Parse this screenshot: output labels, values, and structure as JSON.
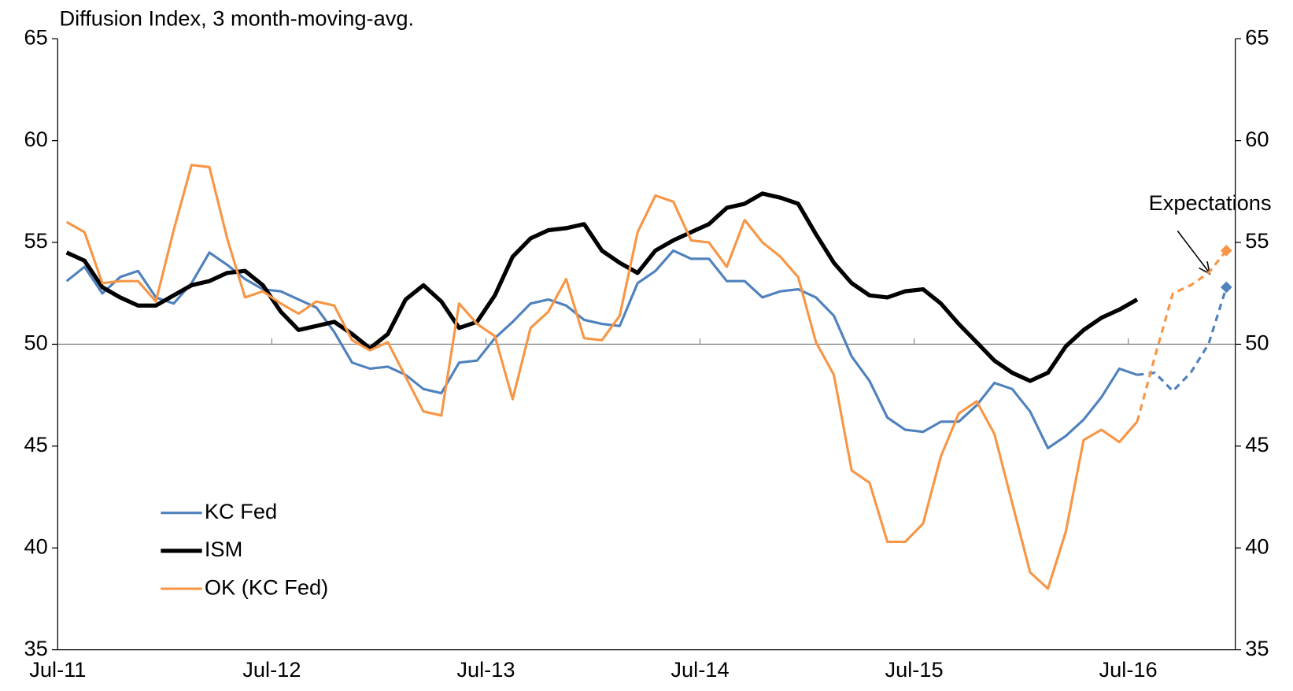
{
  "chart_data": {
    "type": "line",
    "y_label": "Diffusion Index, 3 month-moving-avg.",
    "annotation": "Expectations",
    "categories": [
      "Jul-11",
      null,
      null,
      null,
      null,
      null,
      null,
      null,
      null,
      null,
      null,
      null,
      "Jul-12",
      null,
      null,
      null,
      null,
      null,
      null,
      null,
      null,
      null,
      null,
      null,
      "Jul-13",
      null,
      null,
      null,
      null,
      null,
      null,
      null,
      null,
      null,
      null,
      null,
      "Jul-14",
      null,
      null,
      null,
      null,
      null,
      null,
      null,
      null,
      null,
      null,
      null,
      "Jul-15",
      null,
      null,
      null,
      null,
      null,
      null,
      null,
      null,
      null,
      null,
      null,
      "Jul-16",
      null,
      null,
      null,
      null,
      null
    ],
    "series": [
      {
        "name": "KC Fed",
        "color": "#4f81bd",
        "width": 3,
        "end_marker": "diamond",
        "values": [
          53.1,
          53.8,
          52.5,
          53.3,
          53.6,
          52.3,
          52.0,
          53.0,
          54.5,
          53.9,
          53.2,
          52.7,
          52.6,
          52.2,
          51.8,
          50.6,
          49.1,
          48.8,
          48.9,
          48.5,
          47.8,
          47.6,
          49.1,
          49.2,
          50.3,
          51.1,
          52.0,
          52.2,
          51.9,
          51.2,
          51.0,
          50.9,
          53.0,
          53.6,
          54.6,
          54.2,
          54.2,
          53.1,
          53.1,
          52.3,
          52.6,
          52.7,
          52.3,
          51.4,
          49.4,
          48.2,
          46.4,
          45.8,
          45.7,
          46.2,
          46.2,
          47.0,
          48.1,
          47.8,
          46.7,
          44.9,
          45.5,
          46.3,
          47.4,
          48.8,
          48.5,
          48.6,
          47.7,
          48.6,
          50.0,
          52.8
        ]
      },
      {
        "name": "ISM",
        "color": "#000000",
        "width": 5,
        "values": [
          54.5,
          54.1,
          52.8,
          52.3,
          51.9,
          51.9,
          52.4,
          52.9,
          53.1,
          53.5,
          53.6,
          52.9,
          51.6,
          50.7,
          50.9,
          51.1,
          50.5,
          49.8,
          50.5,
          52.2,
          52.9,
          52.1,
          50.8,
          51.1,
          52.4,
          54.3,
          55.2,
          55.6,
          55.7,
          55.9,
          54.6,
          54.0,
          53.5,
          54.6,
          55.1,
          55.5,
          55.9,
          56.7,
          56.9,
          57.4,
          57.2,
          56.9,
          55.4,
          54.0,
          53.0,
          52.4,
          52.3,
          52.6,
          52.7,
          52.0,
          51.0,
          50.1,
          49.2,
          48.6,
          48.2,
          48.6,
          49.9,
          50.7,
          51.3,
          51.7,
          52.2,
          null,
          null,
          null,
          null,
          null
        ]
      },
      {
        "name": "OK (KC Fed)",
        "color": "#f79646",
        "width": 3,
        "end_marker": "diamond",
        "values": [
          56.0,
          55.5,
          53.0,
          53.1,
          53.1,
          52.1,
          55.6,
          58.8,
          58.7,
          55.2,
          52.3,
          52.6,
          52.0,
          51.5,
          52.1,
          51.9,
          50.2,
          49.7,
          50.1,
          48.4,
          46.7,
          46.5,
          52.0,
          51.0,
          50.4,
          47.3,
          50.8,
          51.6,
          53.2,
          50.3,
          50.2,
          51.4,
          55.5,
          57.3,
          57.0,
          55.1,
          55.0,
          53.8,
          56.1,
          55.0,
          54.3,
          53.3,
          50.1,
          48.5,
          43.8,
          43.2,
          40.3,
          40.3,
          41.2,
          44.5,
          46.6,
          47.2,
          45.6,
          42.2,
          38.8,
          38.0,
          40.8,
          45.3,
          45.8,
          45.2,
          46.2,
          49.4,
          52.5,
          52.9,
          53.5,
          54.6
        ]
      }
    ],
    "dashed_from_index": 60,
    "ylim": [
      35,
      65
    ],
    "yticks": [
      35,
      40,
      45,
      50,
      55,
      60,
      65
    ],
    "y2lim": [
      35,
      65
    ],
    "y2ticks": [
      35,
      40,
      45,
      50,
      55,
      60,
      65
    ],
    "x_axis_at": 50,
    "legend": "lower left"
  }
}
